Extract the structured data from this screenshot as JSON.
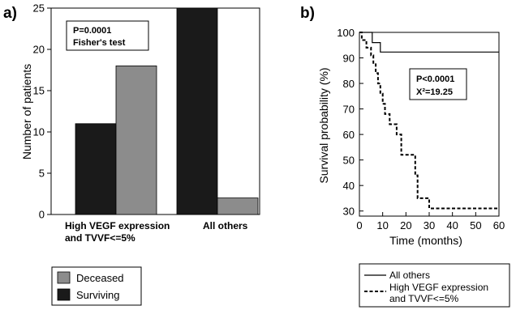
{
  "chart_data": [
    {
      "panel": "a)",
      "type": "bar",
      "categories": [
        "High VEGF expression and TVVF<=5%",
        "All others"
      ],
      "category_lines": [
        [
          "High VEGF expression",
          "and TVVF<=5%"
        ],
        [
          "All others"
        ]
      ],
      "series": [
        {
          "name": "Surviving",
          "values": [
            11,
            25
          ],
          "color": "#1a1a1a"
        },
        {
          "name": "Deceased",
          "values": [
            18,
            2
          ],
          "color": "#8c8c8c"
        }
      ],
      "ylabel": "Number of patients",
      "xlabel": "",
      "ylim": [
        0,
        25
      ],
      "yticks": [
        0,
        5,
        10,
        15,
        20,
        25
      ],
      "annotation": [
        "P=0.0001",
        "Fisher's test"
      ],
      "legend_order": [
        "Deceased",
        "Surviving"
      ],
      "legend_placement": "below"
    },
    {
      "panel": "b)",
      "type": "line",
      "xlabel": "Time (months)",
      "ylabel": "Survival probability (%)",
      "xlim": [
        0,
        60
      ],
      "ylim": [
        28,
        100
      ],
      "xticks": [
        0,
        10,
        20,
        30,
        40,
        50,
        60
      ],
      "yticks": [
        30,
        40,
        50,
        60,
        70,
        80,
        90,
        100
      ],
      "annotation": [
        "P<0.0001",
        "X²=19.25"
      ],
      "series": [
        {
          "name": "All others",
          "style": "solid",
          "x": [
            0,
            5.5,
            5.5,
            9,
            9,
            60
          ],
          "y": [
            100,
            100,
            96,
            96,
            92.3,
            92.3
          ]
        },
        {
          "name": "High VEGF expression and TVVF<=5%",
          "name_lines": [
            "High VEGF expression",
            "and TVVF<=5%"
          ],
          "style": "dashed",
          "x": [
            0,
            1,
            1,
            3,
            3,
            5,
            5,
            6,
            6,
            7,
            7,
            8,
            8,
            9,
            9,
            10,
            10,
            11,
            11,
            13,
            13,
            16,
            16,
            18,
            18,
            24,
            24,
            25,
            25,
            30,
            30,
            60
          ],
          "y": [
            100,
            100,
            97,
            97,
            94,
            94,
            91,
            91,
            88,
            88,
            84,
            84,
            80,
            80,
            76,
            76,
            72,
            72,
            68,
            68,
            64,
            64,
            60,
            60,
            52,
            52,
            44,
            44,
            35,
            35,
            31,
            31
          ]
        }
      ],
      "legend_placement": "below"
    }
  ]
}
